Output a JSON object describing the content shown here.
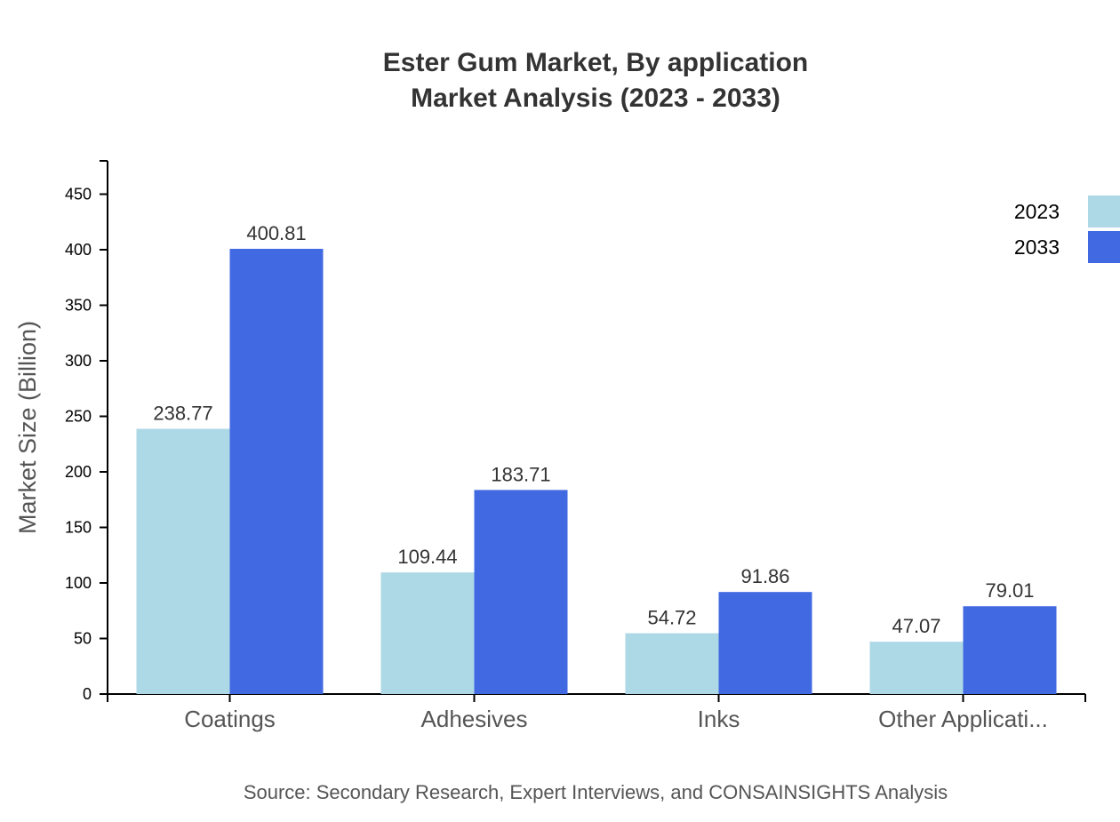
{
  "chart_data": {
    "type": "bar",
    "title_lines": [
      "Ester Gum Market, By application",
      "Market Analysis (2023 - 2033)"
    ],
    "ylabel": "Market Size (Billion)",
    "xlabel": "",
    "categories": [
      "Coatings",
      "Adhesives",
      "Inks",
      "Other Applicati..."
    ],
    "series": [
      {
        "name": "2023",
        "color": "#add8e6",
        "values": [
          238.77,
          109.44,
          54.72,
          47.07
        ]
      },
      {
        "name": "2033",
        "color": "#4169e1",
        "values": [
          400.81,
          183.71,
          91.86,
          79.01
        ]
      }
    ],
    "ylim": [
      0,
      480
    ],
    "yticks": [
      0,
      50,
      100,
      150,
      200,
      250,
      300,
      350,
      400,
      450
    ],
    "grid": false,
    "legend_position": "top-right",
    "source": "Source: Secondary Research, Expert Interviews, and CONSAINSIGHTS Analysis"
  }
}
